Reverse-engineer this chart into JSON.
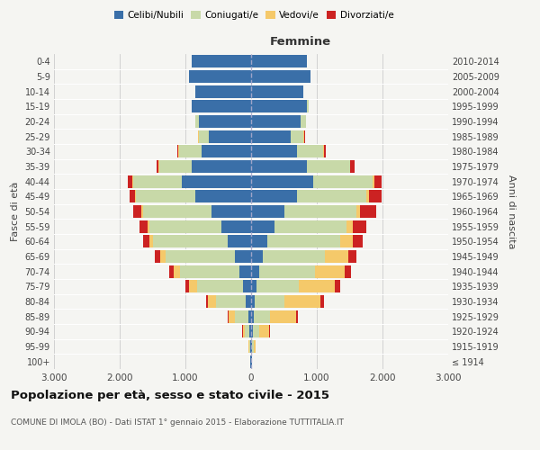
{
  "age_groups": [
    "100+",
    "95-99",
    "90-94",
    "85-89",
    "80-84",
    "75-79",
    "70-74",
    "65-69",
    "60-64",
    "55-59",
    "50-54",
    "45-49",
    "40-44",
    "35-39",
    "30-34",
    "25-29",
    "20-24",
    "15-19",
    "10-14",
    "5-9",
    "0-4"
  ],
  "birth_years": [
    "≤ 1914",
    "1915-1919",
    "1920-1924",
    "1925-1929",
    "1930-1934",
    "1935-1939",
    "1940-1944",
    "1945-1949",
    "1950-1954",
    "1955-1959",
    "1960-1964",
    "1965-1969",
    "1970-1974",
    "1975-1979",
    "1980-1984",
    "1985-1989",
    "1990-1994",
    "1995-1999",
    "2000-2004",
    "2005-2009",
    "2010-2014"
  ],
  "male": {
    "celibe": [
      10,
      15,
      30,
      40,
      80,
      120,
      180,
      250,
      350,
      450,
      600,
      850,
      1050,
      900,
      750,
      650,
      800,
      900,
      850,
      950,
      900
    ],
    "coniugato": [
      5,
      15,
      60,
      200,
      450,
      700,
      900,
      1050,
      1150,
      1100,
      1050,
      900,
      750,
      500,
      350,
      150,
      50,
      10,
      0,
      0,
      0
    ],
    "vedovo": [
      2,
      10,
      40,
      100,
      130,
      120,
      100,
      80,
      50,
      30,
      20,
      15,
      10,
      5,
      5,
      5,
      0,
      0,
      0,
      0,
      0
    ],
    "divorziato": [
      0,
      0,
      5,
      10,
      30,
      60,
      70,
      80,
      100,
      120,
      130,
      80,
      60,
      30,
      20,
      10,
      5,
      0,
      0,
      0,
      0
    ]
  },
  "female": {
    "nubile": [
      10,
      15,
      30,
      40,
      60,
      80,
      120,
      180,
      250,
      350,
      500,
      700,
      950,
      850,
      700,
      600,
      750,
      850,
      800,
      900,
      850
    ],
    "coniugata": [
      5,
      20,
      100,
      250,
      450,
      650,
      850,
      950,
      1100,
      1100,
      1100,
      1050,
      900,
      650,
      400,
      200,
      80,
      20,
      0,
      0,
      0
    ],
    "vedova": [
      5,
      30,
      150,
      400,
      550,
      550,
      450,
      350,
      200,
      100,
      60,
      40,
      20,
      10,
      5,
      5,
      0,
      0,
      0,
      0,
      0
    ],
    "divorziata": [
      0,
      0,
      5,
      20,
      50,
      80,
      100,
      120,
      150,
      200,
      250,
      200,
      120,
      60,
      30,
      15,
      5,
      0,
      0,
      0,
      0
    ]
  },
  "colors": {
    "celibe": "#3a6fa8",
    "coniugato": "#c8d9a8",
    "vedovo": "#f5c96a",
    "divorziato": "#cc2222"
  },
  "title": "Popolazione per età, sesso e stato civile - 2015",
  "subtitle": "COMUNE DI IMOLA (BO) - Dati ISTAT 1° gennaio 2015 - Elaborazione TUTTITALIA.IT",
  "xlabel_right": "Femmine",
  "ylabel_left": "Fasce di età",
  "ylabel_right": "Anni di nascita",
  "xlim": 3000,
  "bg_color": "#f5f5f2",
  "grid_color": "#cccccc",
  "legend_labels": [
    "Celibi/Nubili",
    "Coniugati/e",
    "Vedovi/e",
    "Divorziati/e"
  ]
}
